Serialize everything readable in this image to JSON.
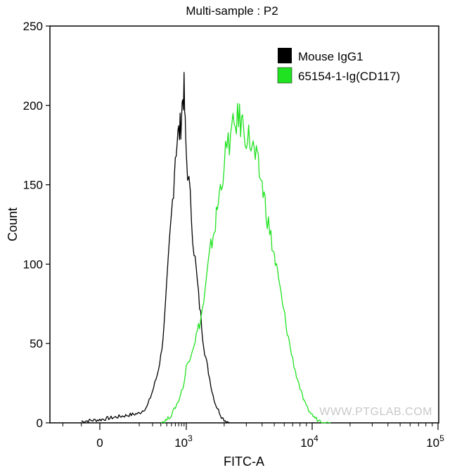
{
  "chart_data": {
    "type": "line",
    "title": "Multi-sample : P2",
    "xlabel": "FITC-A",
    "ylabel": "Count",
    "ylim": [
      0,
      250
    ],
    "x_scale": "biexponential",
    "x_ticks": [
      {
        "value": 0,
        "label": "0",
        "sup": ""
      },
      {
        "value": 1000,
        "label": "10",
        "sup": "3"
      },
      {
        "value": 10000,
        "label": "10",
        "sup": "4"
      },
      {
        "value": 100000,
        "label": "10",
        "sup": "5"
      }
    ],
    "y_ticks": [
      0,
      50,
      100,
      150,
      200,
      250
    ],
    "legend_position": "top-right",
    "watermark": "WWW.PTGLAB.COM",
    "series": [
      {
        "name": "Mouse IgG1",
        "color": "#000000",
        "x": [
          -100,
          0,
          100,
          150,
          200,
          250,
          300,
          350,
          400,
          450,
          500,
          550,
          600,
          650,
          700,
          750,
          800,
          850,
          900,
          950,
          1000,
          1050,
          1100,
          1150,
          1200,
          1250,
          1300,
          1350,
          1400,
          1450,
          1500,
          1600,
          1700,
          1800,
          1900,
          2000,
          2200
        ],
        "y": [
          1,
          2,
          6,
          10,
          20,
          30,
          42,
          60,
          85,
          110,
          130,
          150,
          170,
          178,
          182,
          185,
          195,
          205,
          209,
          185,
          170,
          150,
          130,
          110,
          95,
          80,
          68,
          55,
          45,
          38,
          32,
          20,
          12,
          8,
          4,
          2,
          0
        ]
      },
      {
        "name": "65154-1-Ig(CD117)",
        "color": "#21e221",
        "x": [
          300,
          400,
          500,
          600,
          700,
          800,
          900,
          1000,
          1100,
          1200,
          1300,
          1400,
          1500,
          1600,
          1700,
          1800,
          1900,
          2000,
          2100,
          2200,
          2300,
          2400,
          2500,
          2600,
          2800,
          3000,
          3200,
          3400,
          3600,
          3800,
          4000,
          4300,
          4600,
          5000,
          5400,
          5800,
          6200,
          6600,
          7000,
          7500,
          8000,
          8500,
          9000,
          10000,
          11000,
          12000,
          14000
        ],
        "y": [
          0,
          2,
          5,
          10,
          14,
          20,
          25,
          35,
          45,
          55,
          65,
          80,
          100,
          115,
          125,
          140,
          152,
          165,
          172,
          178,
          182,
          186,
          190,
          192,
          188,
          182,
          178,
          172,
          165,
          158,
          150,
          135,
          120,
          105,
          90,
          75,
          62,
          50,
          40,
          30,
          22,
          15,
          10,
          5,
          2,
          1,
          0
        ]
      }
    ]
  }
}
